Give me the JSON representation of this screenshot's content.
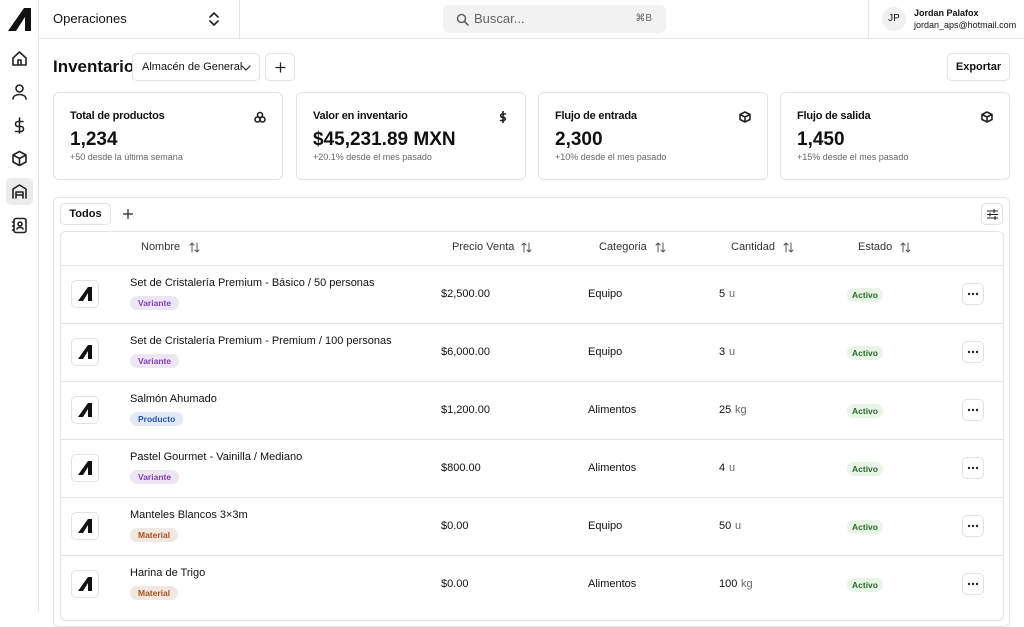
{
  "header": {
    "workspace": "Operaciones",
    "search_placeholder": "Buscar...",
    "search_shortcut": "⌘B",
    "user": {
      "initials": "JP",
      "name": "Jordan Palafox",
      "email": "jordan_aps@hotmail.com"
    }
  },
  "toolbar": {
    "title": "Inventario:",
    "warehouse": "Almacén de General",
    "export": "Exportar"
  },
  "stats": [
    {
      "label": "Total de productos",
      "value": "1,234",
      "change": "+50 desde la última semana"
    },
    {
      "label": "Valor en inventario",
      "value": "$45,231.89 MXN",
      "change": "+20.1% desde el mes pasado"
    },
    {
      "label": "Flujo de entrada",
      "value": "2,300",
      "change": "+10% desde el mes pasado"
    },
    {
      "label": "Flujo de salida",
      "value": "1,450",
      "change": "+15% desde el mes pasado"
    }
  ],
  "tabs": [
    "Todos"
  ],
  "table": {
    "columns": [
      "Nombre",
      "Precio Venta",
      "Categoria",
      "Cantidad",
      "Estado"
    ],
    "rows": [
      {
        "name": "Set de Cristalería Premium - Básico / 50 personas",
        "tag": "Variante",
        "tag_color": "#7e3fb0",
        "price": "$2,500.00",
        "category": "Equipo",
        "quantity": 5,
        "unit": "u",
        "status": "Activo"
      },
      {
        "name": "Set de Cristalería Premium - Premium / 100 personas",
        "tag": "Variante",
        "tag_color": "#7e3fb0",
        "price": "$6,000.00",
        "category": "Equipo",
        "quantity": 3,
        "unit": "u",
        "status": "Activo"
      },
      {
        "name": "Salmón Ahumado",
        "tag": "Producto",
        "tag_color": "#2456b8",
        "price": "$1,200.00",
        "category": "Alimentos",
        "quantity": 25,
        "unit": "kg",
        "status": "Activo"
      },
      {
        "name": "Pastel Gourmet - Vainilla / Mediano",
        "tag": "Variante",
        "tag_color": "#7e3fb0",
        "price": "$800.00",
        "category": "Alimentos",
        "quantity": 4,
        "unit": "u",
        "status": "Activo"
      },
      {
        "name": "Manteles Blancos 3×3m",
        "tag": "Material",
        "tag_color": "#a5521c",
        "price": "$0.00",
        "category": "Equipo",
        "quantity": 50,
        "unit": "u",
        "status": "Activo"
      },
      {
        "name": "Harina de Trigo",
        "tag": "Material",
        "tag_color": "#a5521c",
        "price": "$0.00",
        "category": "Alimentos",
        "quantity": 100,
        "unit": "kg",
        "status": "Activo"
      }
    ]
  }
}
